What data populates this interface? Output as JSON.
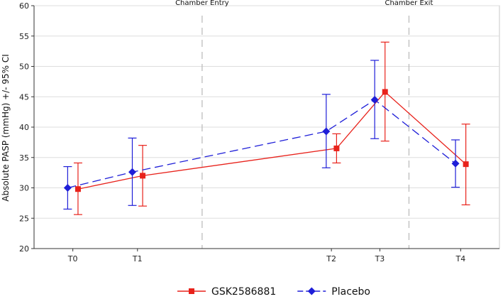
{
  "chart_data": {
    "type": "line",
    "title": "",
    "xlabel": "",
    "ylabel": "Absolute PASP (mmHg) +/- 95% CI",
    "ylim": [
      20,
      60
    ],
    "yticks": [
      20,
      25,
      30,
      35,
      40,
      45,
      50,
      55,
      60
    ],
    "xlim": [
      -0.6,
      6.6
    ],
    "categories": [
      {
        "label": "T0",
        "x": 0
      },
      {
        "label": "T1",
        "x": 1
      },
      {
        "label": "T2",
        "x": 4
      },
      {
        "label": "T3",
        "x": 4.75
      },
      {
        "label": "T4",
        "x": 6
      }
    ],
    "grid": {
      "horizontal": true,
      "vertical": false
    },
    "annotations": [
      {
        "label": "Chamber Entry",
        "x": 2,
        "line": "dashed"
      },
      {
        "label": "Chamber Exit",
        "x": 5.2,
        "line": "dashed"
      }
    ],
    "legend_position": "bottom",
    "series": [
      {
        "name": "GSK2586881",
        "color": "#e8221b",
        "marker": "square",
        "line": "solid",
        "offset": 0.08,
        "points": [
          {
            "x": "T0",
            "y": 29.8,
            "lower": 25.6,
            "upper": 34.1
          },
          {
            "x": "T1",
            "y": 32.0,
            "lower": 27.0,
            "upper": 37.0
          },
          {
            "x": "T2",
            "y": 36.5,
            "lower": 34.1,
            "upper": 38.9
          },
          {
            "x": "T3",
            "y": 45.8,
            "lower": 37.7,
            "upper": 54.0
          },
          {
            "x": "T4",
            "y": 33.9,
            "lower": 27.2,
            "upper": 40.5
          }
        ]
      },
      {
        "name": "Placebo",
        "color": "#1e1ed8",
        "marker": "diamond",
        "line": "dashed",
        "offset": -0.08,
        "points": [
          {
            "x": "T0",
            "y": 30.0,
            "lower": 26.5,
            "upper": 33.5
          },
          {
            "x": "T1",
            "y": 32.6,
            "lower": 27.1,
            "upper": 38.2
          },
          {
            "x": "T2",
            "y": 39.3,
            "lower": 33.3,
            "upper": 45.4
          },
          {
            "x": "T3",
            "y": 44.5,
            "lower": 38.1,
            "upper": 51.0
          },
          {
            "x": "T4",
            "y": 34.0,
            "lower": 30.1,
            "upper": 37.9
          }
        ]
      }
    ]
  }
}
